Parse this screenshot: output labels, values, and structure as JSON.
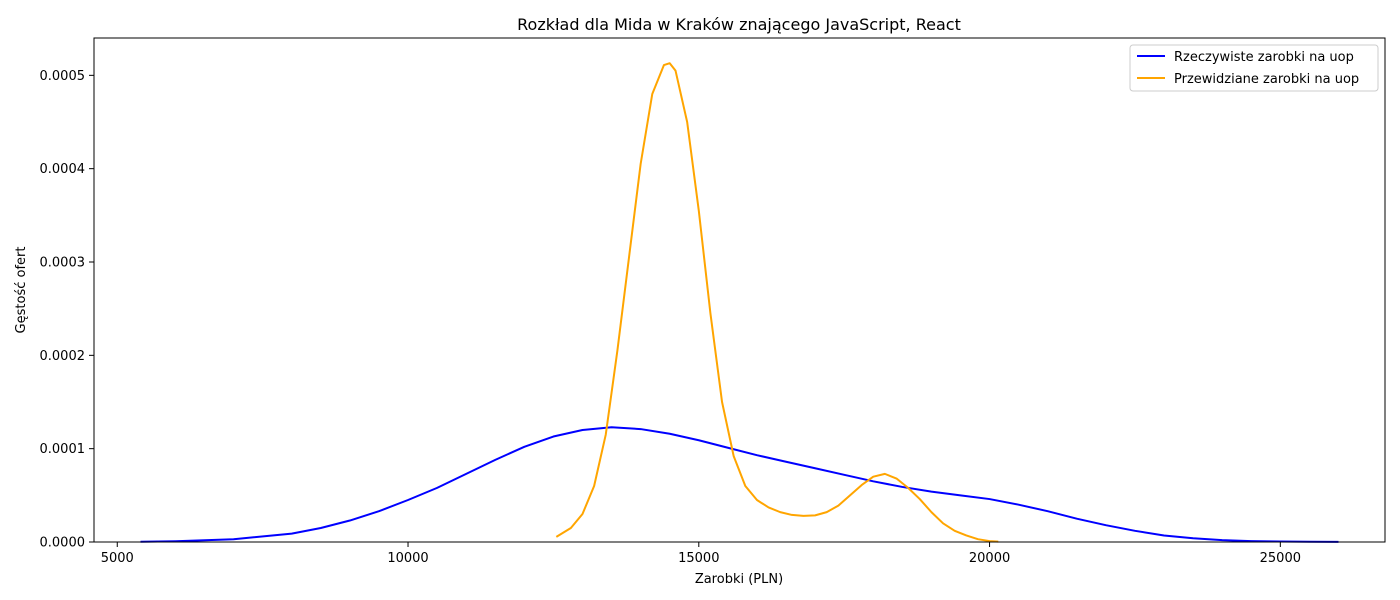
{
  "chart_data": {
    "type": "line",
    "title": "Rozkład dla Mida w Kraków znającego JavaScript, React",
    "xlabel": "Zarobki (PLN)",
    "ylabel": "Gęstość ofert",
    "xlim": [
      4600,
      26800
    ],
    "ylim": [
      0,
      0.00054
    ],
    "xticks": [
      5000,
      10000,
      15000,
      20000,
      25000
    ],
    "xtick_labels": [
      "5000",
      "10000",
      "15000",
      "20000",
      "25000"
    ],
    "yticks": [
      0,
      0.0001,
      0.0002,
      0.0003,
      0.0004,
      0.0005
    ],
    "ytick_labels": [
      "0.0000",
      "0.0001",
      "0.0002",
      "0.0003",
      "0.0004",
      "0.0005"
    ],
    "grid": false,
    "legend_position": "top-right",
    "series": [
      {
        "name": "Rzeczywiste zarobki na uop",
        "color": "#0000ff",
        "x": [
          5400,
          6000,
          7000,
          8000,
          8500,
          9000,
          9500,
          10000,
          10500,
          11000,
          11500,
          12000,
          12500,
          13000,
          13500,
          14000,
          14500,
          15000,
          15500,
          16000,
          16500,
          17000,
          17500,
          18000,
          18500,
          19000,
          19500,
          20000,
          20500,
          21000,
          21500,
          22000,
          22500,
          23000,
          23500,
          24000,
          24500,
          25000,
          25500,
          26000
        ],
        "y": [
          2e-07,
          8e-07,
          3e-06,
          9e-06,
          1.5e-05,
          2.3e-05,
          3.3e-05,
          4.5e-05,
          5.8e-05,
          7.3e-05,
          8.8e-05,
          0.000102,
          0.000113,
          0.00012,
          0.000123,
          0.000121,
          0.000116,
          0.000109,
          0.000101,
          9.3e-05,
          8.6e-05,
          7.9e-05,
          7.2e-05,
          6.5e-05,
          5.9e-05,
          5.4e-05,
          5e-05,
          4.6e-05,
          4e-05,
          3.3e-05,
          2.5e-05,
          1.8e-05,
          1.2e-05,
          7e-06,
          4e-06,
          2e-06,
          1e-06,
          5e-07,
          2e-07,
          1e-07
        ]
      },
      {
        "name": "Przewidziane zarobki na uop",
        "color": "#ffa500",
        "x": [
          12550,
          12800,
          13000,
          13200,
          13400,
          13600,
          13800,
          14000,
          14200,
          14400,
          14500,
          14600,
          14800,
          15000,
          15200,
          15400,
          15600,
          15800,
          16000,
          16200,
          16400,
          16600,
          16800,
          17000,
          17200,
          17400,
          17600,
          17800,
          18000,
          18200,
          18400,
          18600,
          18800,
          19000,
          19200,
          19400,
          19600,
          19800,
          20000,
          20150
        ],
        "y": [
          5.5e-06,
          1.5e-05,
          3e-05,
          6e-05,
          0.000115,
          0.000205,
          0.000305,
          0.000405,
          0.00048,
          0.000511,
          0.000513,
          0.000505,
          0.00045,
          0.000355,
          0.000245,
          0.00015,
          9.2e-05,
          6e-05,
          4.5e-05,
          3.7e-05,
          3.2e-05,
          2.9e-05,
          2.8e-05,
          2.85e-05,
          3.2e-05,
          3.9e-05,
          5e-05,
          6.1e-05,
          7e-05,
          7.3e-05,
          6.8e-05,
          5.8e-05,
          4.6e-05,
          3.2e-05,
          2e-05,
          1.2e-05,
          7e-06,
          3e-06,
          1e-06,
          4e-07
        ]
      }
    ]
  }
}
